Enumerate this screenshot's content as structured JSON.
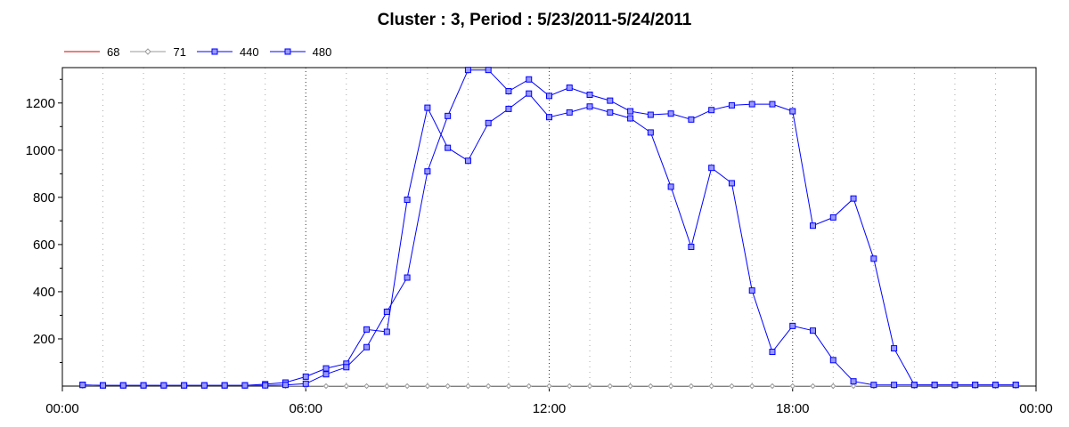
{
  "chart_data": {
    "type": "line",
    "title": "Cluster : 3, Period : 5/23/2011-5/24/2011",
    "xlabel": "",
    "ylabel": "",
    "x_range_hours": [
      0,
      24
    ],
    "ylim": [
      0,
      1350
    ],
    "x_ticks": [
      {
        "hour": 0,
        "label": "00:00"
      },
      {
        "hour": 6,
        "label": "06:00"
      },
      {
        "hour": 12,
        "label": "12:00"
      },
      {
        "hour": 18,
        "label": "18:00"
      },
      {
        "hour": 24,
        "label": "00:00"
      }
    ],
    "y_ticks": [
      200,
      400,
      600,
      800,
      1000,
      1200
    ],
    "grid": true,
    "legend_position": "top-left",
    "x_hours": [
      0.5,
      1.0,
      1.5,
      2.0,
      2.5,
      3.0,
      3.5,
      4.0,
      4.5,
      5.0,
      5.5,
      6.0,
      6.5,
      7.0,
      7.5,
      8.0,
      8.5,
      9.0,
      9.5,
      10.0,
      10.5,
      11.0,
      11.5,
      12.0,
      12.5,
      13.0,
      13.5,
      14.0,
      14.5,
      15.0,
      15.5,
      16.0,
      16.5,
      17.0,
      17.5,
      18.0,
      18.5,
      19.0,
      19.5,
      20.0,
      20.5,
      21.0,
      21.5,
      22.0,
      22.5,
      23.0,
      23.5
    ],
    "series": [
      {
        "name": "68",
        "color": "#cc0000",
        "marker": "none",
        "values": [
          0,
          0,
          0,
          0,
          0,
          0,
          0,
          0,
          0,
          0,
          0,
          0,
          0,
          0,
          0,
          0,
          0,
          0,
          0,
          0,
          0,
          0,
          0,
          0,
          0,
          0,
          0,
          0,
          0,
          0,
          0,
          0,
          0,
          0,
          0,
          0,
          0,
          0,
          0,
          0,
          0,
          0,
          0,
          0,
          0,
          0,
          0
        ]
      },
      {
        "name": "71",
        "color": "#999999",
        "marker": "diamond",
        "values": [
          0,
          0,
          0,
          0,
          0,
          0,
          0,
          0,
          0,
          0,
          0,
          0,
          0,
          0,
          0,
          0,
          0,
          0,
          0,
          0,
          0,
          0,
          0,
          0,
          0,
          0,
          0,
          0,
          0,
          0,
          0,
          0,
          0,
          0,
          0,
          0,
          0,
          0,
          0,
          0,
          0,
          0,
          0,
          0,
          0,
          0,
          0
        ]
      },
      {
        "name": "440",
        "color": "#0000ff",
        "marker": "square",
        "values": [
          5,
          3,
          3,
          3,
          3,
          3,
          3,
          3,
          3,
          8,
          15,
          40,
          75,
          95,
          240,
          230,
          790,
          1180,
          1010,
          955,
          1115,
          1175,
          1240,
          1140,
          1160,
          1185,
          1160,
          1135,
          1075,
          845,
          590,
          925,
          860,
          405,
          145,
          255,
          235,
          110,
          20,
          5,
          5,
          5,
          5,
          5,
          5,
          5,
          5
        ]
      },
      {
        "name": "480",
        "color": "#0000ff",
        "marker": "square",
        "values": [
          5,
          3,
          3,
          3,
          3,
          3,
          3,
          3,
          3,
          3,
          5,
          10,
          50,
          80,
          165,
          315,
          460,
          910,
          1145,
          1340,
          1340,
          1250,
          1300,
          1230,
          1265,
          1235,
          1210,
          1165,
          1150,
          1155,
          1130,
          1170,
          1190,
          1195,
          1195,
          1165,
          680,
          715,
          795,
          540,
          160,
          5,
          5,
          5,
          5,
          5,
          5
        ]
      }
    ]
  }
}
